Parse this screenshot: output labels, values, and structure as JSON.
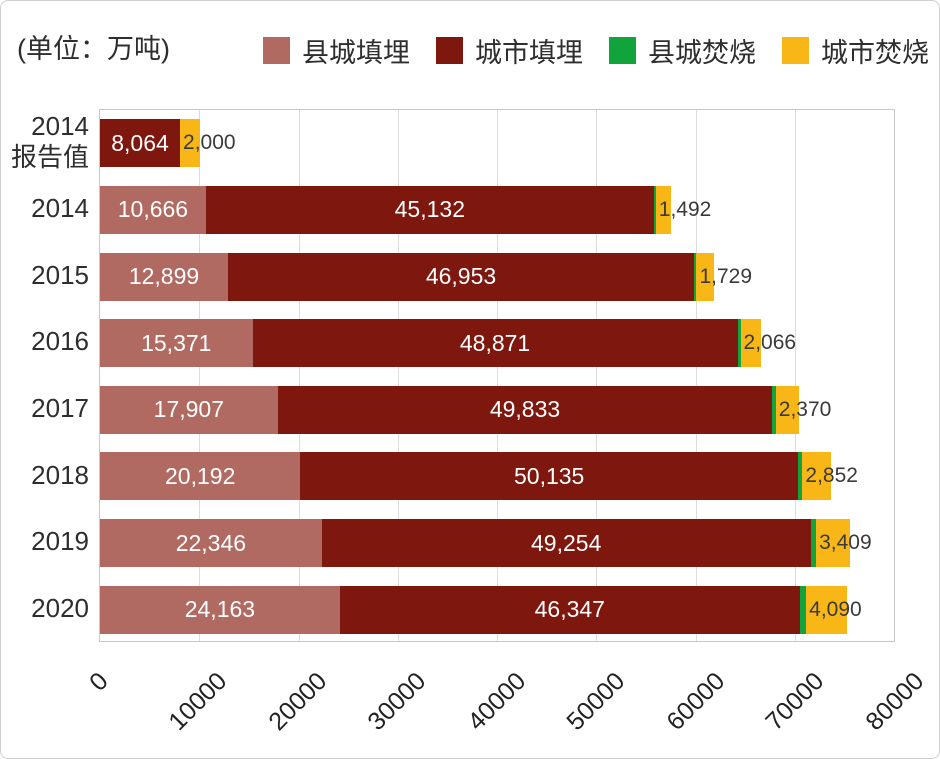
{
  "unit_label": "(单位：万吨)",
  "colors": {
    "county_landfill": "#b06a62",
    "city_landfill": "#7e170e",
    "county_incineration": "#12a43c",
    "city_incineration": "#f8b717",
    "grid_line": "#dcdcdc",
    "plot_border": "#c8c8c8",
    "axis_text": "#2e2e2e",
    "bar_label_light": "#ffffff",
    "bar_label_dark": "#3a3a3a"
  },
  "legend": {
    "position": "top",
    "items": [
      {
        "key": "county_landfill",
        "label": "县城填埋"
      },
      {
        "key": "city_landfill",
        "label": "城市填埋"
      },
      {
        "key": "county_incineration",
        "label": "县城焚烧"
      },
      {
        "key": "city_incineration",
        "label": "城市焚烧"
      }
    ]
  },
  "chart_data": {
    "type": "bar",
    "orientation": "horizontal",
    "stacked": true,
    "unit": "万吨",
    "categories": [
      "2014\n报告值",
      "2014",
      "2015",
      "2016",
      "2017",
      "2018",
      "2019",
      "2020"
    ],
    "series": [
      {
        "key": "county_landfill",
        "name": "县城填埋",
        "values": [
          0,
          10666,
          12899,
          15371,
          17907,
          20192,
          22346,
          24163
        ],
        "labels": [
          "",
          "10,666",
          "12,899",
          "15,371",
          "17,907",
          "20,192",
          "22,346",
          "24,163"
        ],
        "label_style": "inside-center-light"
      },
      {
        "key": "city_landfill",
        "name": "城市填埋",
        "values": [
          8064,
          45132,
          46953,
          48871,
          49833,
          50135,
          49254,
          46347
        ],
        "labels": [
          "8,064",
          "45,132",
          "46,953",
          "48,871",
          "49,833",
          "50,135",
          "49,254",
          "46,347"
        ],
        "label_style": "inside-center-light"
      },
      {
        "key": "county_incineration",
        "name": "县城焚烧",
        "values": [
          0,
          200,
          250,
          300,
          350,
          450,
          550,
          640
        ],
        "labels": [
          "",
          "",
          "",
          "",
          "",
          "",
          "",
          ""
        ],
        "label_style": "none"
      },
      {
        "key": "city_incineration",
        "name": "城市焚烧",
        "values": [
          2000,
          1492,
          1729,
          2066,
          2370,
          2852,
          3409,
          4090
        ],
        "labels": [
          "2,000",
          "1,492",
          "1,729",
          "2,066",
          "2,370",
          "2,852",
          "3,409",
          "4,090"
        ],
        "label_style": "at-start-dark"
      }
    ],
    "xlim": [
      0,
      80000
    ],
    "xticks": [
      0,
      10000,
      20000,
      30000,
      40000,
      50000,
      60000,
      70000,
      80000
    ],
    "xtick_labels": [
      "0",
      "10000",
      "20000",
      "30000",
      "40000",
      "50000",
      "60000",
      "70000",
      "80000"
    ],
    "grid": true,
    "legend_position": "top"
  }
}
